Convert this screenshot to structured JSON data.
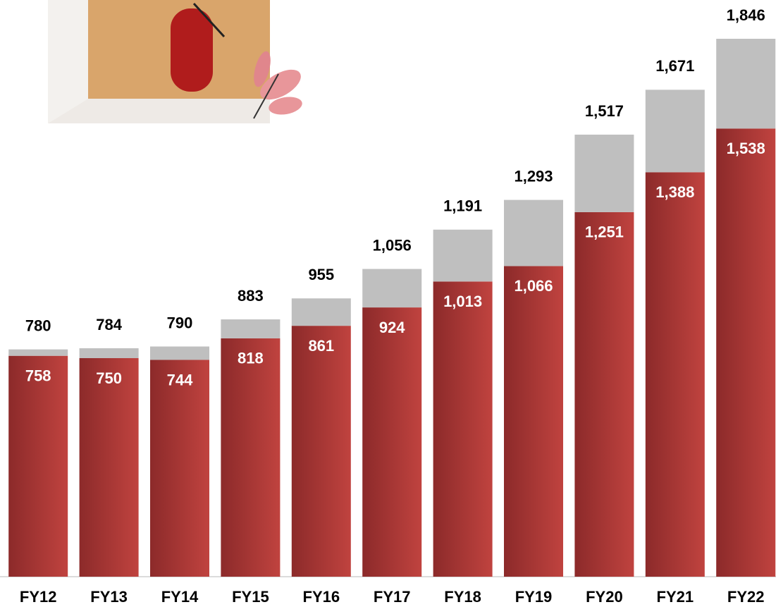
{
  "chart_data": {
    "type": "stacked-bar",
    "categories": [
      "FY12",
      "FY13",
      "FY14",
      "FY15",
      "FY16",
      "FY17",
      "FY18",
      "FY19",
      "FY20",
      "FY21",
      "FY22"
    ],
    "series": [
      {
        "color": "#b23a38",
        "values": [
          758,
          750,
          744,
          818,
          861,
          924,
          1013,
          1066,
          1251,
          1388,
          1538
        ],
        "value_labels": [
          "758",
          "750",
          "744",
          "818",
          "861",
          "924",
          "1,013",
          "1,066",
          "1,251",
          "1,388",
          "1,538"
        ]
      },
      {
        "color": "#bfbfbf",
        "values": [
          22,
          34,
          46,
          65,
          94,
          132,
          178,
          227,
          266,
          283,
          308
        ]
      }
    ],
    "totals": [
      780,
      784,
      790,
      883,
      955,
      1056,
      1191,
      1293,
      1517,
      1671,
      1846
    ],
    "total_labels": [
      "780",
      "784",
      "790",
      "883",
      "955",
      "1,056",
      "1,191",
      "1,293",
      "1,517",
      "1,671",
      "1,846"
    ]
  }
}
